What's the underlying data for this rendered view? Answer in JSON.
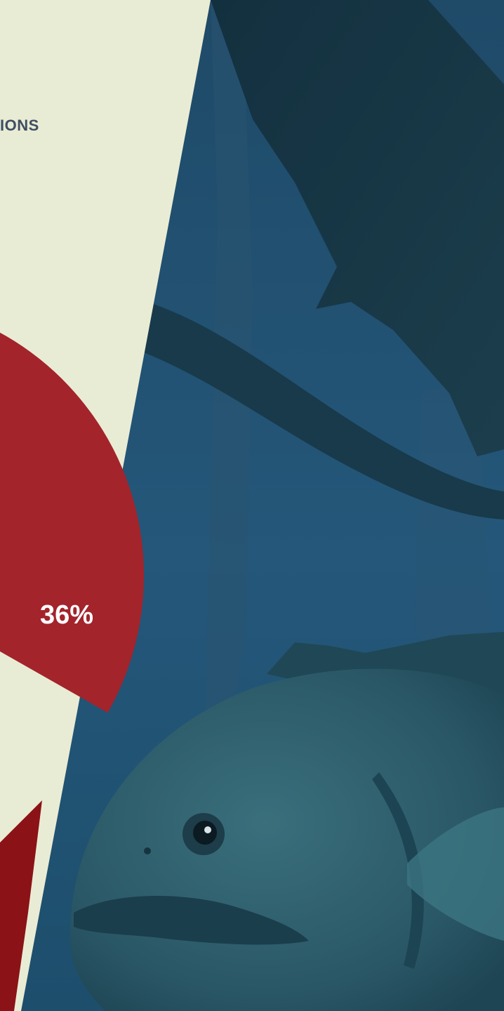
{
  "header": {
    "partial_title": "IONS"
  },
  "chart_data": {
    "type": "pie",
    "slices": [
      {
        "label": "36%",
        "value": 36,
        "color": "#a3242b"
      }
    ]
  },
  "background": {
    "panel_color": "#e9ecd4",
    "photo": "fish-underwater",
    "water_color": "#244d6b"
  }
}
